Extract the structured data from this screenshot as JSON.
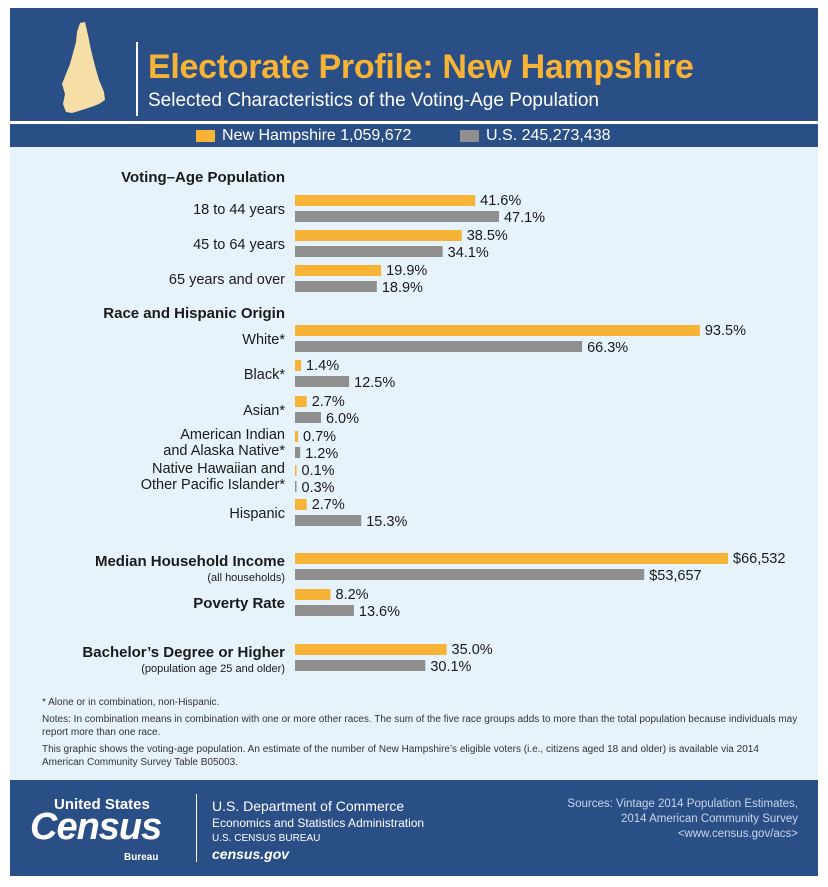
{
  "header": {
    "title": "Electorate Profile: New Hampshire",
    "subtitle": "Selected Characteristics of the Voting-Age Population"
  },
  "legend": {
    "nh_label": "New Hampshire 1,059,672",
    "us_label": "U.S. 245,273,438"
  },
  "colors": {
    "nh": "#f6b336",
    "us": "#8f8f8f",
    "header_bg": "#2a4e86",
    "panel_bg": "#e6f3fb"
  },
  "chart_data": {
    "type": "bar",
    "orientation": "horizontal",
    "series": [
      {
        "name": "New Hampshire",
        "total": "1,059,672"
      },
      {
        "name": "U.S.",
        "total": "245,273,438"
      }
    ],
    "sections": [
      {
        "title": "Voting–Age Population",
        "unit": "percent",
        "scale_max": 100,
        "items": [
          {
            "label": [
              "18 to 44 years"
            ],
            "nh": 41.6,
            "us": 47.1,
            "nh_label": "41.6%",
            "us_label": "47.1%"
          },
          {
            "label": [
              "45 to 64 years"
            ],
            "nh": 38.5,
            "us": 34.1,
            "nh_label": "38.5%",
            "us_label": "34.1%"
          },
          {
            "label": [
              "65 years and over"
            ],
            "nh": 19.9,
            "us": 18.9,
            "nh_label": "19.9%",
            "us_label": "18.9%"
          }
        ]
      },
      {
        "title": "Race and Hispanic Origin",
        "unit": "percent",
        "scale_max": 100,
        "items": [
          {
            "label": [
              "White*"
            ],
            "nh": 93.5,
            "us": 66.3,
            "nh_label": "93.5%",
            "us_label": "66.3%"
          },
          {
            "label": [
              "Black*"
            ],
            "nh": 1.4,
            "us": 12.5,
            "nh_label": "1.4%",
            "us_label": "12.5%"
          },
          {
            "label": [
              "Asian*"
            ],
            "nh": 2.7,
            "us": 6.0,
            "nh_label": "2.7%",
            "us_label": "6.0%"
          },
          {
            "label": [
              "American Indian",
              "and Alaska Native*"
            ],
            "nh": 0.7,
            "us": 1.2,
            "nh_label": "0.7%",
            "us_label": "1.2%"
          },
          {
            "label": [
              "Native Hawaiian and",
              "Other Pacific Islander*"
            ],
            "nh": 0.1,
            "us": 0.3,
            "nh_label": "0.1%",
            "us_label": "0.3%"
          },
          {
            "label": [
              "Hispanic"
            ],
            "nh": 2.7,
            "us": 15.3,
            "nh_label": "2.7%",
            "us_label": "15.3%"
          }
        ]
      },
      {
        "title": "",
        "unit": "dollars",
        "scale_max": 66532,
        "items": [
          {
            "label": [
              "Median Household Income"
            ],
            "sublabel": "(all households)",
            "bold": true,
            "nh": 66532,
            "us": 53657,
            "nh_label": "$66,532",
            "us_label": "$53,657"
          }
        ]
      },
      {
        "title": "",
        "unit": "percent",
        "scale_max": 100,
        "items": [
          {
            "label": [
              "Poverty Rate"
            ],
            "bold": true,
            "nh": 8.2,
            "us": 13.6,
            "nh_label": "8.2%",
            "us_label": "13.6%"
          }
        ]
      },
      {
        "title": "",
        "unit": "percent",
        "scale_max": 100,
        "items": [
          {
            "label": [
              "Bachelor’s Degree or Higher"
            ],
            "sublabel": "(population age 25 and older)",
            "bold": true,
            "nh": 35.0,
            "us": 30.1,
            "nh_label": "35.0%",
            "us_label": "30.1%"
          }
        ]
      }
    ]
  },
  "notes": {
    "footnote": "* Alone or in combination, non-Hispanic.",
    "note1": "Notes: In combination means in combination with one or more other races. The sum of the five race groups adds to more than the total population because individuals may report more than one race.",
    "note2": "This graphic shows the voting-age population. An estimate of the number of New Hampshire’s eligible voters (i.e., citizens aged 18 and older) is available via 2014 American Community Survey Table B05003."
  },
  "footer": {
    "logo_top": "United States",
    "logo_main": "Census",
    "logo_sub": "Bureau",
    "dept1": "U.S. Department of Commerce",
    "dept2": "Economics and Statistics Administration",
    "dept3": "U.S. CENSUS BUREAU",
    "dept4": "census.gov",
    "sources1": "Sources: Vintage 2014 Population Estimates,",
    "sources2": "2014 American Community Survey",
    "sources3": "<www.census.gov/acs>"
  }
}
